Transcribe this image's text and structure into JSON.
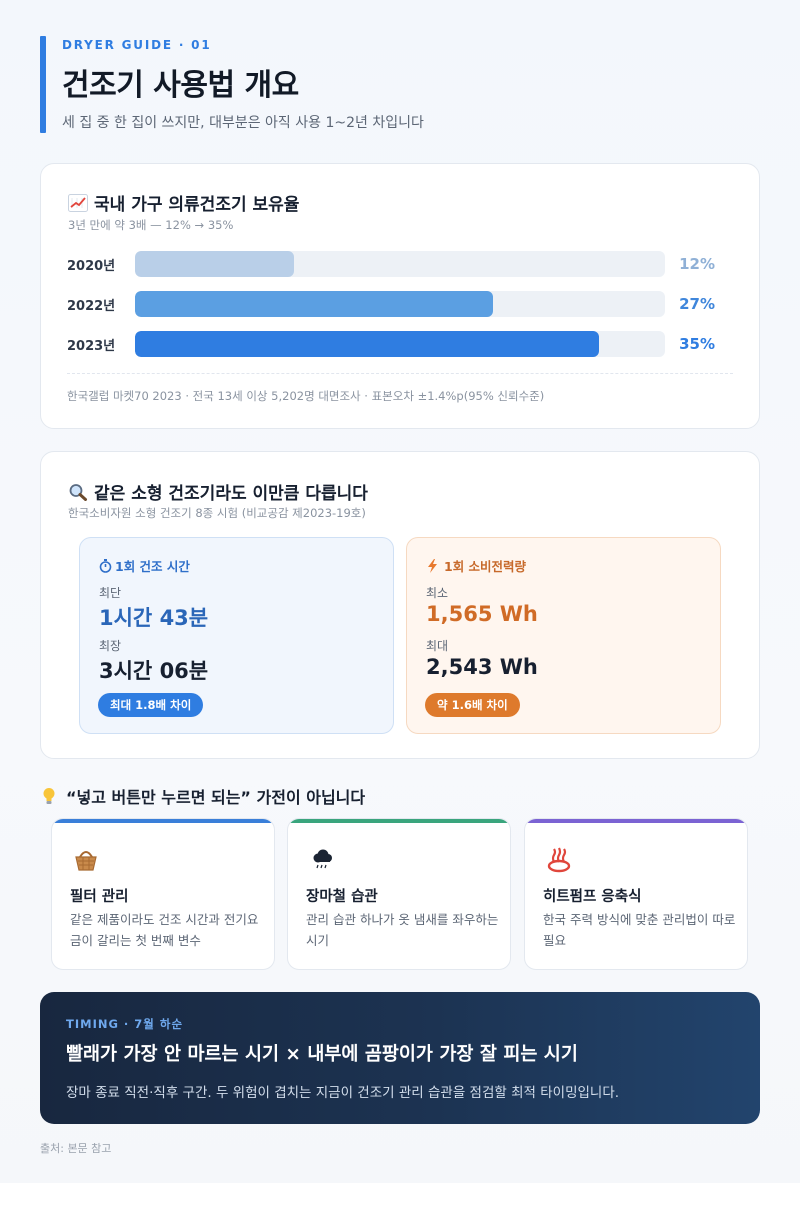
{
  "header": {
    "eyebrow": "DRYER GUIDE · 01",
    "title": "건조기 사용법 개요",
    "subtitle": "세 집 중 한 집이 쓰지만, 대부분은 아직 사용 1~2년 차입니다"
  },
  "ownership": {
    "icon": "chart-up-icon",
    "title": "국내 가구 의류건조기 보유율",
    "subtitle": "3년 만에 약 3배 — 12% → 35%",
    "source": "한국갤럽 마켓70 2023 · 전국 13세 이상 5,202명 대면조사 · 표본오차 ±1.4%p(95% 신뢰수준)"
  },
  "chart_data": {
    "type": "bar",
    "categories": [
      "2020년",
      "2022년",
      "2023년"
    ],
    "values": [
      12,
      27,
      35
    ],
    "value_labels": [
      "12%",
      "27%",
      "35%"
    ],
    "ylim": [
      0,
      40
    ],
    "colors": [
      "#b9cfe8",
      "#5b9fe2",
      "#2f7de1"
    ],
    "value_colors": [
      "#8fb0d6",
      "#3f86db",
      "#2f7de1"
    ],
    "orientation": "horizontal"
  },
  "compare": {
    "icon": "magnifier-icon",
    "title": "같은 소형 건조기라도 이만큼 다릅니다",
    "subtitle": "한국소비자원 소형 건조기 8종 시험 (비교공감 제2023-19호)",
    "time": {
      "icon": "stopwatch-icon",
      "label": "1회 건조 시간",
      "min_label": "최단",
      "min_value": "1시간 43분",
      "max_label": "최장",
      "max_value": "3시간 06분",
      "badge": "최대 1.8배 차이",
      "color": "#2f7de1"
    },
    "power": {
      "icon": "lightning-icon",
      "label": "1회 소비전력량",
      "min_label": "최소",
      "min_value": "1,565 Wh",
      "max_label": "최대",
      "max_value": "2,543 Wh",
      "badge": "약 1.6배 차이",
      "color": "#de7a2c"
    }
  },
  "tips": {
    "icon": "lightbulb-icon",
    "heading": "“넣고 버튼만 누르면 되는” 가전이 아닙니다",
    "cards": [
      {
        "icon": "basket-icon",
        "title": "필터 관리",
        "desc": "같은 제품이라도 건조 시간과 전기요금이 갈리는 첫 번째 변수",
        "accent": "#3a7fd9"
      },
      {
        "icon": "rain-cloud-icon",
        "title": "장마철 습관",
        "desc": "관리 습관 하나가 옷 냄새를 좌우하는 시기",
        "accent": "#3aa57d"
      },
      {
        "icon": "hot-springs-icon",
        "title": "히트펌프 응축식",
        "desc": "한국 주력 방식에 맞춘 관리법이 따로 필요",
        "accent": "#7b63d3"
      }
    ]
  },
  "timing": {
    "tag": "TIMING · 7월 하순",
    "title": "빨래가 가장 안 마르는 시기 × 내부에 곰팡이가 가장 잘 피는 시기",
    "desc": "장마 종료 직전·직후 구간. 두 위험이 겹치는 지금이 건조기 관리 습관을 점검할 최적 타이밍입니다."
  },
  "footer": {
    "source": "출처: 본문 참고"
  }
}
